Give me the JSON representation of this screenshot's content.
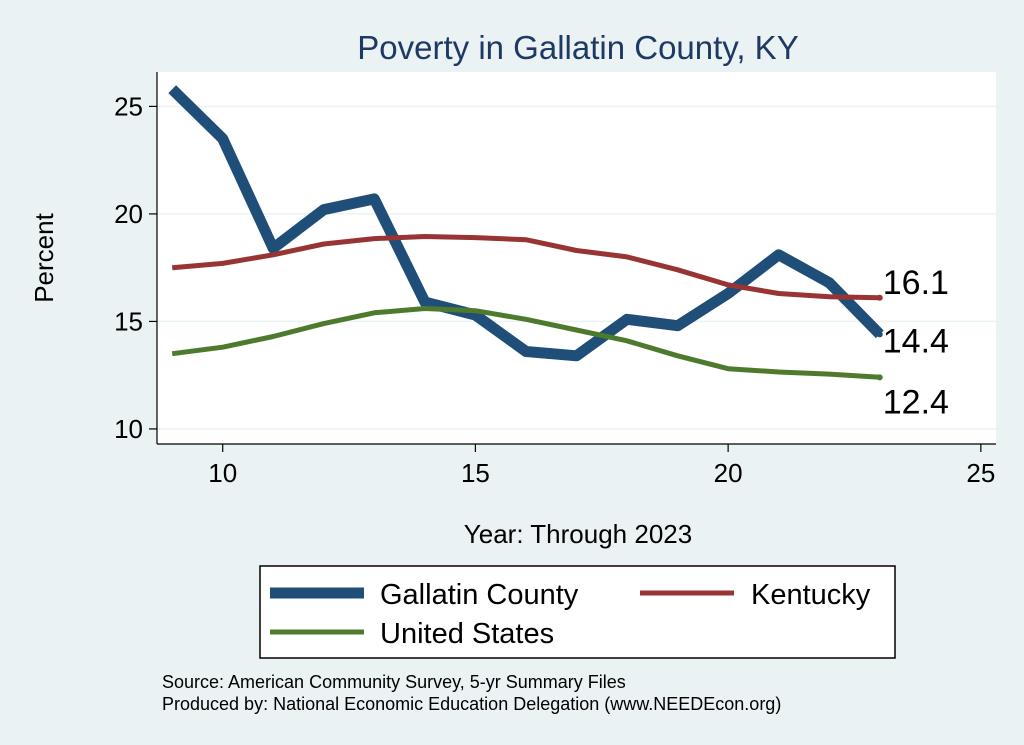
{
  "chart_data": {
    "type": "line",
    "title": "Poverty in Gallatin County, KY",
    "xlabel": "Year: Through 2023",
    "ylabel": "Percent",
    "xlim": [
      8.7,
      25.3
    ],
    "ylim": [
      9.3,
      26.6
    ],
    "xticks": [
      10,
      15,
      20,
      25
    ],
    "yticks": [
      10,
      15,
      20,
      25
    ],
    "x": [
      9,
      10,
      11,
      12,
      13,
      14,
      15,
      16,
      17,
      18,
      19,
      20,
      21,
      22,
      23
    ],
    "series": [
      {
        "name": "Gallatin County",
        "color": "#1f4e79",
        "values": [
          25.8,
          23.5,
          18.4,
          20.2,
          20.7,
          15.9,
          15.3,
          13.6,
          13.4,
          15.1,
          14.8,
          16.3,
          18.1,
          16.8,
          14.4
        ],
        "end_label": "14.4"
      },
      {
        "name": "Kentucky",
        "color": "#983434",
        "values": [
          17.5,
          17.7,
          18.1,
          18.6,
          18.85,
          18.95,
          18.9,
          18.8,
          18.3,
          18.0,
          17.4,
          16.7,
          16.3,
          16.15,
          16.1
        ],
        "end_label": "16.1"
      },
      {
        "name": "United States",
        "color": "#4e7a2e",
        "values": [
          13.5,
          13.8,
          14.3,
          14.9,
          15.4,
          15.6,
          15.5,
          15.1,
          14.6,
          14.1,
          13.4,
          12.8,
          12.65,
          12.55,
          12.4
        ],
        "end_label": "12.4"
      }
    ],
    "legend": [
      "Gallatin County",
      "Kentucky",
      "United States"
    ]
  },
  "notes": {
    "source": "Source: American Community Survey, 5-yr Summary Files",
    "produced_by": "Produced by: National Economic Education Delegation (www.NEEDEcon.org)"
  },
  "colors": {
    "background": "#eaf2f3",
    "plot_background": "#ffffff",
    "title": "#1e3a64",
    "grid": "#eaf2f3"
  }
}
